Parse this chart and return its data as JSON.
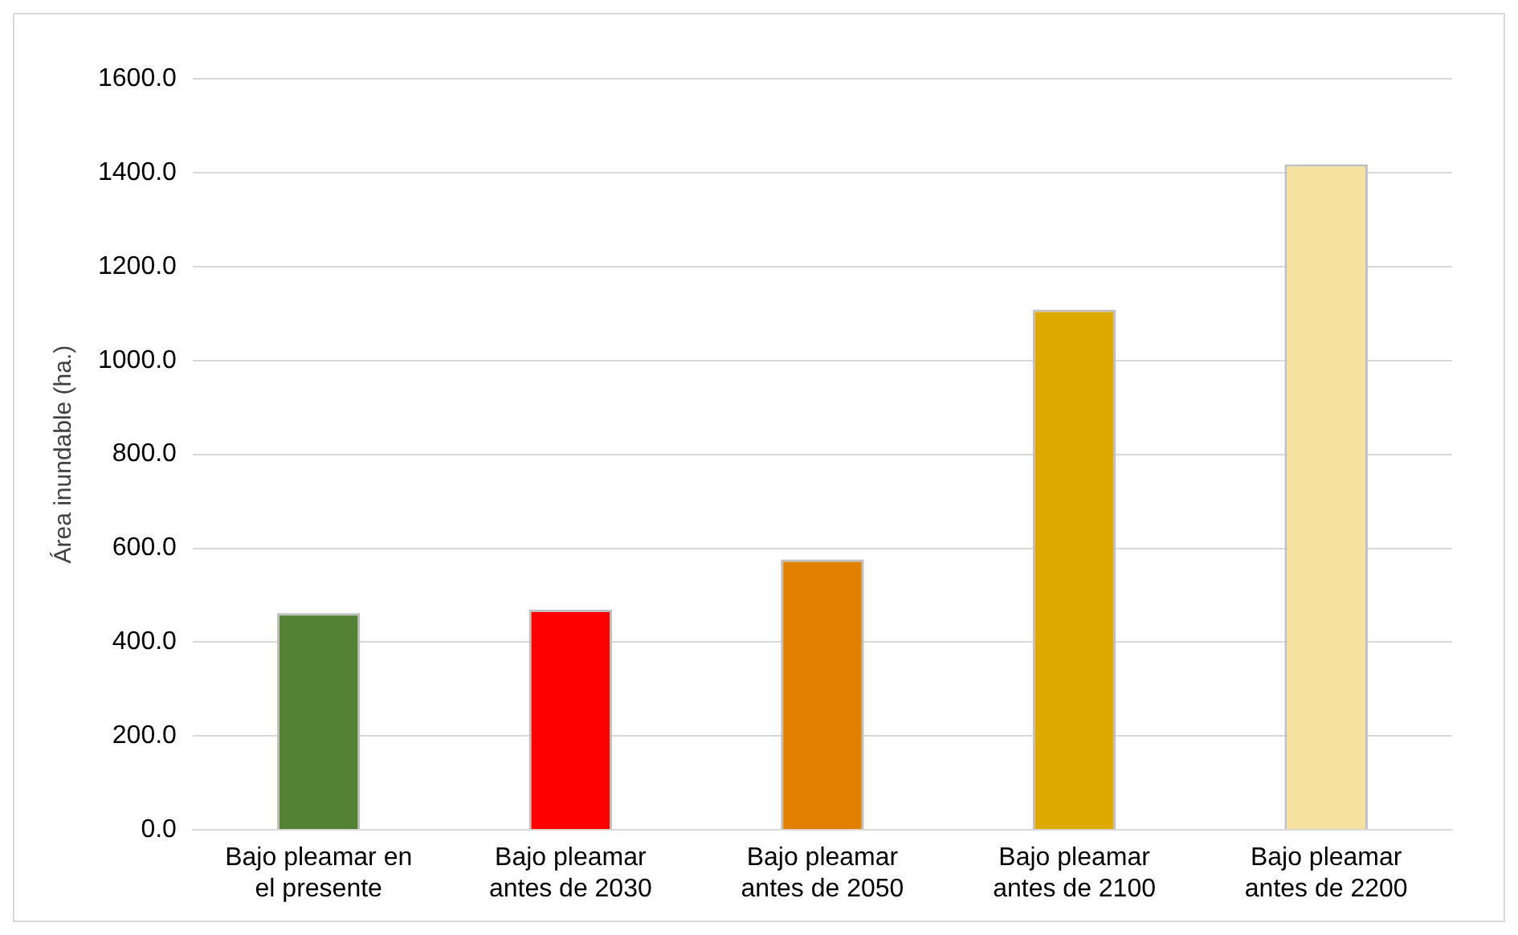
{
  "chart_data": {
    "type": "bar",
    "ylabel": "Área inundable (ha.)",
    "categories": [
      "Bajo pleamar en el presente",
      "Bajo pleamar antes de 2030",
      "Bajo pleamar antes de 2050",
      "Bajo pleamar antes de 2100",
      "Bajo pleamar antes de 2200"
    ],
    "values": [
      462,
      469,
      576,
      1108,
      1418
    ],
    "colors": [
      "#548235",
      "#ff0000",
      "#e07f00",
      "#dfaa00",
      "#f5e2a0"
    ],
    "ylim": [
      0,
      1600
    ],
    "yticks": [
      {
        "value": 0,
        "label": "0.0"
      },
      {
        "value": 200,
        "label": "200.0"
      },
      {
        "value": 400,
        "label": "400.0"
      },
      {
        "value": 600,
        "label": "600.0"
      },
      {
        "value": 800,
        "label": "800.0"
      },
      {
        "value": 1000,
        "label": "1000.0"
      },
      {
        "value": 1200,
        "label": "1200.0"
      },
      {
        "value": 1400,
        "label": "1400.0"
      },
      {
        "value": 1600,
        "label": "1600.0"
      }
    ],
    "grid": "y",
    "legend": false
  }
}
